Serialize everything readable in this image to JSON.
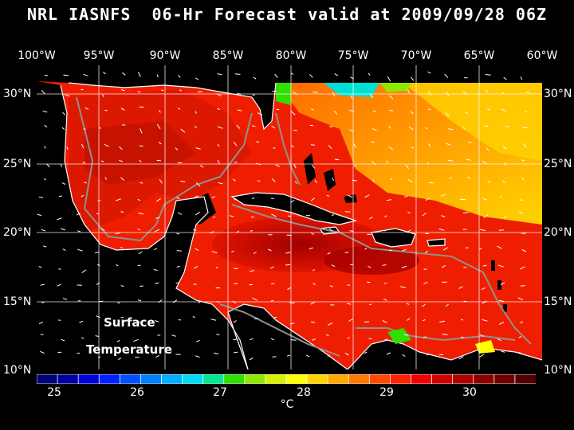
{
  "title": "NRL IASNFS  06-Hr Forecast valid at 2009/09/28 06Z",
  "longitude_labels": [
    "100°W",
    "95°W",
    "90°W",
    "85°W",
    "80°W",
    "75°W",
    "70°W",
    "65°W",
    "60°W"
  ],
  "latitude_labels": [
    "30°N",
    "25°N",
    "20°N",
    "15°N",
    "10°N"
  ],
  "overlay_text": {
    "line1": "Surface",
    "line2": "Temperature"
  },
  "colorbar": {
    "tick_labels": [
      "25",
      "26",
      "27",
      "28",
      "29",
      "30"
    ],
    "unit": "°C",
    "colors": [
      "#000078",
      "#0000a0",
      "#0000d8",
      "#0020ff",
      "#0050ff",
      "#0080ff",
      "#00b0ff",
      "#00dcf0",
      "#00e890",
      "#30e000",
      "#90e800",
      "#d8f000",
      "#ffff00",
      "#ffd400",
      "#ffa800",
      "#ff7800",
      "#ff4a00",
      "#ff2000",
      "#f00000",
      "#d00000",
      "#b00000",
      "#8c0000",
      "#6e0000",
      "#500000"
    ]
  },
  "map": {
    "lon_range": [
      -100,
      -60
    ],
    "lat_range": [
      10,
      30.5
    ],
    "colors": {
      "ocean_base": "#f01e00",
      "gulf": "#dc1800",
      "caribbean_warm": "#b00000",
      "atlantic_cool": "#ffd400",
      "atlantic_mid": "#ff9a00",
      "cold_spot": "#00e0d0",
      "land": "#000000",
      "coast": "#ffffff",
      "grid": "#ffffff",
      "bathymetry": "#909090"
    }
  }
}
